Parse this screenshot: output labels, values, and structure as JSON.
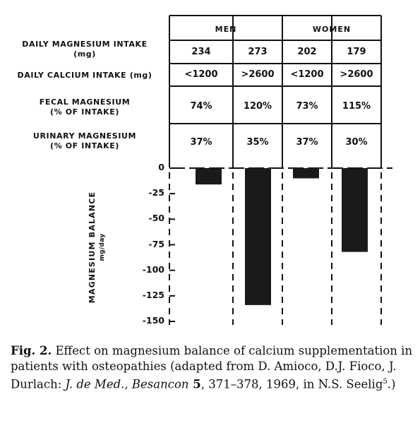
{
  "table": {
    "groups": [
      "MEN",
      "WOMEN"
    ],
    "rows": [
      {
        "label": "DAILY MAGNESIUM INTAKE",
        "label_sub": "(mg)",
        "cells": [
          "234",
          "273",
          "202",
          "179"
        ]
      },
      {
        "label": "DAILY CALCIUM INTAKE (mg)",
        "label_sub": "",
        "cells": [
          "<1200",
          ">2600",
          "<1200",
          ">2600"
        ]
      },
      {
        "label": "FECAL MAGNESIUM",
        "label_sub": "(% OF INTAKE)",
        "cells": [
          "74%",
          "120%",
          "73%",
          "115%"
        ]
      },
      {
        "label": "URINARY MAGNESIUM",
        "label_sub": "(% OF INTAKE)",
        "cells": [
          "37%",
          "35%",
          "37%",
          "30%"
        ]
      }
    ]
  },
  "chart_data": {
    "type": "bar",
    "categories": [
      "Men <1200",
      "Men >2600",
      "Women <1200",
      "Women >2600"
    ],
    "values": [
      -16,
      -134,
      -10,
      -82
    ],
    "title": "",
    "xlabel": "",
    "ylabel": "MAGNESIUM BALANCE",
    "ylabel_unit": "mg/day",
    "ylim": [
      -150,
      0
    ],
    "yticks": [
      "0",
      "-25",
      "-50",
      "-75",
      "-100",
      "-125",
      "-150"
    ],
    "ytick_values": [
      0,
      -25,
      -50,
      -75,
      -100,
      -125,
      -150
    ],
    "bar_color": "#1a1a1a",
    "grid": false
  },
  "caption": {
    "fig_label": "Fig. 2.",
    "text_1": " Effect on magnesium balance of calcium supplementation in patients with osteopathies (adapted from D. Amioco, D.J. Fioco, J. Durlach: ",
    "journal": "J. de Med., Besancon",
    "volume": " 5",
    "text_2": ", 371–378, 1969, in N.S. Seelig",
    "superscript": "5",
    "text_3": ".)"
  }
}
